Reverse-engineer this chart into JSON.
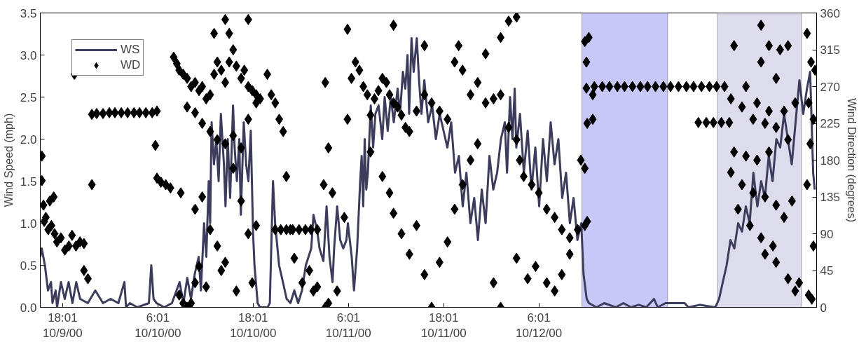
{
  "chart_data": {
    "type": "line",
    "ylabel": "Wind Speed (mph)",
    "y2label": "Wind Direction (degrees)",
    "xlim": [
      "2000-10-09T15:12",
      "2000-10-13T17:00"
    ],
    "xticks": [
      {
        "value": "2000-10-09T18:01",
        "label": "18:01\n10/9/00"
      },
      {
        "value": "2000-10-10T06:01",
        "label": "6:01\n10/10/00"
      },
      {
        "value": "2000-10-10T18:01",
        "label": "18:01\n10/10/00"
      },
      {
        "value": "2000-10-11T06:01",
        "label": "6:01\n10/11/00"
      },
      {
        "value": "2000-10-11T18:01",
        "label": "18:01\n10/11/00"
      },
      {
        "value": "2000-10-12T06:01",
        "label": "6:01\n10/12/00"
      }
    ],
    "ylim": [
      0,
      3.5
    ],
    "yticks": [
      {
        "value": 0,
        "label": "0.0"
      },
      {
        "value": 0.5,
        "label": "0.5"
      },
      {
        "value": 1,
        "label": "1.0"
      },
      {
        "value": 1.5,
        "label": "1.5"
      },
      {
        "value": 2,
        "label": "2.0"
      },
      {
        "value": 2.5,
        "label": "2.5"
      },
      {
        "value": 3,
        "label": "3.0"
      },
      {
        "value": 3.5,
        "label": "3.5"
      }
    ],
    "y2lim": [
      0,
      360
    ],
    "y2ticks": [
      0,
      45,
      90,
      135,
      180,
      225,
      270,
      315,
      360
    ],
    "grid": false,
    "legend": "top left",
    "line_style": "solid",
    "bands": [
      {
        "axis": "x",
        "from": "2000-10-12T11:26",
        "to": "2000-10-12T22:14",
        "label": null,
        "color": "#c8c8f8"
      },
      {
        "axis": "x",
        "from": "2000-10-13T04:30",
        "to": "2000-10-13T15:06",
        "label": null,
        "color": "#dcdcec"
      }
    ],
    "series": [
      {
        "name": "WS",
        "color": "#3c3c5c",
        "x": [
          "2000-10-09T15:12",
          "2000-10-09T15:23",
          "2000-10-09T15:47",
          "2000-10-09T16:10",
          "2000-10-09T16:33",
          "2000-10-09T16:44",
          "2000-10-09T17:08",
          "2000-10-09T17:19",
          "2000-10-09T17:48",
          "2000-10-09T18:17",
          "2000-10-09T18:46",
          "2000-10-09T19:15",
          "2000-10-09T19:44",
          "2000-10-09T20:13",
          "2000-10-09T21:11",
          "2000-10-09T22:08",
          "2000-10-09T23:06",
          "2000-10-10T00:04",
          "2000-10-10T01:02",
          "2000-10-10T01:48",
          "2000-10-10T02:00",
          "2000-10-10T02:29",
          "2000-10-10T03:26",
          "2000-10-10T04:53",
          "2000-10-10T05:11",
          "2000-10-10T05:28",
          "2000-10-10T05:51",
          "2000-10-10T06:49",
          "2000-10-10T07:47",
          "2000-10-10T08:45",
          "2000-10-10T09:14",
          "2000-10-10T09:43",
          "2000-10-10T10:11",
          "2000-10-10T10:40",
          "2000-10-10T11:09",
          "2000-10-10T11:26",
          "2000-10-10T11:50",
          "2000-10-10T12:07",
          "2000-10-10T12:25",
          "2000-10-10T12:36",
          "2000-10-10T12:47",
          "2000-10-10T13:05",
          "2000-10-10T13:22",
          "2000-10-10T13:40",
          "2000-10-10T13:57",
          "2000-10-10T14:20",
          "2000-10-10T14:32",
          "2000-10-10T14:49",
          "2000-10-10T15:07",
          "2000-10-10T15:29",
          "2000-10-10T15:41",
          "2000-10-10T15:58",
          "2000-10-10T16:16",
          "2000-10-10T16:28",
          "2000-10-10T16:50",
          "2000-10-10T17:08",
          "2000-10-10T17:25",
          "2000-10-10T17:43",
          "2000-10-10T18:00",
          "2000-10-10T18:11",
          "2000-10-10T18:35",
          "2000-10-10T18:52",
          "2000-10-10T19:50",
          "2000-10-10T20:07",
          "2000-10-10T20:31",
          "2000-10-10T20:47",
          "2000-10-10T21:17",
          "2000-10-10T21:46",
          "2000-10-10T22:14",
          "2000-10-10T22:43",
          "2000-10-10T23:12",
          "2000-10-10T23:41",
          "2000-10-11T00:10",
          "2000-10-11T00:39",
          "2000-10-11T01:20",
          "2000-10-11T01:37",
          "2000-10-11T02:06",
          "2000-10-11T02:23",
          "2000-10-11T02:52",
          "2000-10-11T03:16",
          "2000-10-11T03:38",
          "2000-10-11T04:01",
          "2000-10-11T04:13",
          "2000-10-11T04:36",
          "2000-10-11T04:59",
          "2000-10-11T05:22",
          "2000-10-11T05:46",
          "2000-10-11T05:57",
          "2000-10-11T06:26",
          "2000-10-11T06:43",
          "2000-10-11T07:07",
          "2000-10-11T07:30",
          "2000-10-11T07:41",
          "2000-10-11T07:53",
          "2000-10-11T08:04",
          "2000-10-11T08:16",
          "2000-10-11T08:28",
          "2000-10-11T08:50",
          "2000-10-11T09:08",
          "2000-10-11T09:25",
          "2000-10-11T09:49",
          "2000-10-11T10:17",
          "2000-10-11T10:35",
          "2000-10-11T10:58",
          "2000-10-11T11:21",
          "2000-10-11T11:44",
          "2000-10-11T12:13",
          "2000-10-11T12:31",
          "2000-10-11T12:53",
          "2000-10-11T13:11",
          "2000-10-11T13:28",
          "2000-10-11T13:40",
          "2000-10-11T13:58",
          "2000-10-11T14:14",
          "2000-10-11T14:38",
          "2000-10-11T14:55",
          "2000-10-11T15:13",
          "2000-10-11T15:35",
          "2000-10-11T16:04",
          "2000-10-11T16:34",
          "2000-10-11T17:02",
          "2000-10-11T17:31",
          "2000-10-11T18:00",
          "2000-10-11T18:29",
          "2000-10-11T18:58",
          "2000-10-11T19:27",
          "2000-10-11T19:56",
          "2000-10-11T20:25",
          "2000-10-11T20:53",
          "2000-10-11T21:23",
          "2000-10-11T21:52",
          "2000-10-11T22:20",
          "2000-10-11T22:49",
          "2000-10-11T23:18",
          "2000-10-11T23:47",
          "2000-10-12T00:16",
          "2000-10-12T00:45",
          "2000-10-12T01:14",
          "2000-10-12T01:43",
          "2000-10-12T02:00",
          "2000-10-12T02:23",
          "2000-10-12T02:41",
          "2000-10-12T02:58",
          "2000-10-12T03:10",
          "2000-10-12T03:38",
          "2000-10-12T04:07",
          "2000-10-12T04:36",
          "2000-10-12T05:05",
          "2000-10-12T05:34",
          "2000-10-12T06:03",
          "2000-10-12T06:32",
          "2000-10-12T07:01",
          "2000-10-12T07:30",
          "2000-10-12T07:59",
          "2000-10-12T08:28",
          "2000-10-12T08:57",
          "2000-10-12T09:26",
          "2000-10-12T09:55",
          "2000-10-12T10:23",
          "2000-10-12T10:52",
          "2000-10-12T11:21",
          "2000-10-12T11:38",
          "2000-10-12T12:02",
          "2000-10-12T12:19",
          "2000-10-12T13:17",
          "2000-10-12T14:15",
          "2000-10-12T15:41",
          "2000-10-12T16:40",
          "2000-10-12T17:37",
          "2000-10-12T18:35",
          "2000-10-12T19:33",
          "2000-10-12T20:31",
          "2000-10-12T20:59",
          "2000-10-12T21:58",
          "2000-10-12T22:55",
          "2000-10-13T00:22",
          "2000-10-13T00:51",
          "2000-10-13T02:18",
          "2000-10-13T04:14",
          "2000-10-13T04:43",
          "2000-10-13T05:11",
          "2000-10-13T05:40",
          "2000-10-13T06:09",
          "2000-10-13T06:38",
          "2000-10-13T07:07",
          "2000-10-13T07:36",
          "2000-10-13T08:05",
          "2000-10-13T08:34",
          "2000-10-13T09:02",
          "2000-10-13T09:32",
          "2000-10-13T10:01",
          "2000-10-13T10:29",
          "2000-10-13T10:58",
          "2000-10-13T11:27",
          "2000-10-13T11:56",
          "2000-10-13T12:25",
          "2000-10-13T12:54",
          "2000-10-13T13:23",
          "2000-10-13T13:52",
          "2000-10-13T14:21",
          "2000-10-13T14:50",
          "2000-10-13T15:19",
          "2000-10-13T15:47",
          "2000-10-13T16:11",
          "2000-10-13T16:34",
          "2000-10-13T16:46"
        ],
        "values": [
          0.6,
          0.7,
          0.5,
          0.2,
          0.3,
          0.05,
          0.2,
          0,
          0.3,
          0.1,
          0.3,
          0.05,
          0.3,
          0.1,
          0.05,
          0.2,
          0.05,
          0.1,
          0.05,
          0.3,
          0,
          0.05,
          0,
          0.05,
          0.5,
          0.1,
          0.05,
          0,
          0.05,
          0.3,
          0.05,
          0.35,
          0.1,
          0.4,
          0.6,
          0.2,
          1.0,
          0.6,
          1.5,
          1.0,
          2.2,
          1.7,
          2.0,
          1.5,
          2.3,
          1.7,
          1.2,
          2.0,
          1.3,
          2.4,
          1.9,
          1.5,
          2.0,
          1.1,
          2.2,
          1.7,
          1.5,
          2.1,
          0.9,
          0.5,
          0.05,
          0,
          0,
          0.05,
          1.5,
          1.0,
          0.5,
          0.3,
          0.1,
          0.05,
          0.2,
          0.05,
          0.2,
          0.5,
          0.7,
          1.1,
          0.9,
          0.7,
          0.55,
          1.2,
          0.6,
          0.3,
          0.7,
          1.2,
          0.8,
          0.7,
          0.8,
          1.0,
          0.6,
          0.2,
          0.7,
          1.5,
          1.8,
          1.2,
          2.0,
          1.4,
          1.6,
          2.4,
          1.9,
          2.3,
          2.4,
          2.0,
          2.5,
          2.1,
          2.5,
          2.2,
          2.6,
          2.3,
          2.8,
          2.6,
          3.0,
          2.3,
          3.2,
          2.8,
          3.2,
          2.7,
          2.3,
          2.7,
          2.2,
          2.4,
          2.0,
          2.3,
          2.1,
          1.9,
          2.2,
          1.6,
          1.8,
          1.2,
          1.6,
          1.0,
          1.3,
          0.8,
          1.4,
          1.0,
          1.8,
          1.4,
          1.6,
          2.0,
          2.2,
          1.6,
          2.5,
          2.0,
          2.6,
          1.9,
          2.3,
          1.6,
          2.1,
          1.4,
          1.9,
          1.2,
          2.0,
          1.5,
          2.2,
          1.7,
          2.0,
          1.3,
          1.6,
          1.0,
          1.3,
          0.8,
          1.0,
          0.4,
          0.1,
          0.05,
          0,
          0.05,
          0,
          0.05,
          0,
          0.03,
          0,
          0.1,
          0,
          0.05,
          0.05,
          0.05,
          0,
          0.03,
          0,
          0.1,
          0.3,
          0.5,
          0.8,
          0.7,
          1.0,
          0.9,
          1.2,
          1.0,
          1.6,
          1.2,
          1.5,
          1.3,
          1.8,
          1.5,
          2.0,
          1.9,
          2.3,
          2.0,
          1.7,
          2.2,
          2.7,
          2.3,
          2.6,
          2.8,
          1.6,
          1.4
        ]
      },
      {
        "name": "WD",
        "type": "scatter",
        "color": "#000000",
        "axis": "y2",
        "marker": "diamond",
        "x": [
          "2000-10-09T15:24",
          "2000-10-09T15:24",
          "2000-10-09T15:36",
          "2000-10-09T15:42",
          "2000-10-09T15:54",
          "2000-10-09T16:12",
          "2000-10-09T16:24",
          "2000-10-09T16:36",
          "2000-10-09T16:54",
          "2000-10-09T17:00",
          "2000-10-09T17:18",
          "2000-10-09T17:48",
          "2000-10-09T18:18",
          "2000-10-09T18:48",
          "2000-10-09T19:12",
          "2000-10-09T19:30",
          "2000-10-09T19:42",
          "2000-10-09T20:12",
          "2000-10-09T20:42",
          "2000-10-09T20:42",
          "2000-10-09T21:12",
          "2000-10-09T21:42",
          "2000-10-09T21:42",
          "2000-10-09T22:18",
          "2000-10-09T23:06",
          "2000-10-09T23:54",
          "2000-10-10T00:36",
          "2000-10-10T01:24",
          "2000-10-10T02:12",
          "2000-10-10T03:00",
          "2000-10-10T03:42",
          "2000-10-10T04:30",
          "2000-10-10T05:18",
          "2000-10-10T05:42",
          "2000-10-10T05:54",
          "2000-10-10T05:54",
          "2000-10-10T06:24",
          "2000-10-10T07:00",
          "2000-10-10T07:36",
          "2000-10-10T08:00",
          "2000-10-10T08:24",
          "2000-10-10T08:42",
          "2000-10-10T08:42",
          "2000-10-10T08:54",
          "2000-10-10T09:12",
          "2000-10-10T09:12",
          "2000-10-10T09:42",
          "2000-10-10T09:42",
          "2000-10-10T09:42",
          "2000-10-10T10:12",
          "2000-10-10T10:12",
          "2000-10-10T10:42",
          "2000-10-10T10:42",
          "2000-10-10T10:42",
          "2000-10-10T10:42",
          "2000-10-10T11:12",
          "2000-10-10T11:12",
          "2000-10-10T11:36",
          "2000-10-10T11:36",
          "2000-10-10T11:36",
          "2000-10-10T12:06",
          "2000-10-10T12:06",
          "2000-10-10T12:36",
          "2000-10-10T12:36",
          "2000-10-10T12:36",
          "2000-10-10T13:06",
          "2000-10-10T13:06",
          "2000-10-10T13:30",
          "2000-10-10T13:30",
          "2000-10-10T13:30",
          "2000-10-10T14:00",
          "2000-10-10T14:00",
          "2000-10-10T14:30",
          "2000-10-10T14:30",
          "2000-10-10T14:30",
          "2000-10-10T14:30",
          "2000-10-10T15:00",
          "2000-10-10T15:00",
          "2000-10-10T15:30",
          "2000-10-10T15:30",
          "2000-10-10T15:30",
          "2000-10-10T15:54",
          "2000-10-10T15:54",
          "2000-10-10T16:30",
          "2000-10-10T16:30",
          "2000-10-10T16:30",
          "2000-10-10T16:54",
          "2000-10-10T17:24",
          "2000-10-10T17:24",
          "2000-10-10T17:24",
          "2000-10-10T17:24",
          "2000-10-10T17:54",
          "2000-10-10T17:54",
          "2000-10-10T18:24",
          "2000-10-10T18:24",
          "2000-10-10T18:24",
          "2000-10-10T18:54",
          "2000-10-10T19:48",
          "2000-10-10T20:18",
          "2000-10-10T20:48",
          "2000-10-10T20:48",
          "2000-10-10T21:18",
          "2000-10-10T21:30",
          "2000-10-10T21:48",
          "2000-10-10T22:12",
          "2000-10-10T22:12",
          "2000-10-10T22:42",
          "2000-10-10T23:00",
          "2000-10-10T23:12",
          "2000-10-10T23:48",
          "2000-10-11T00:12",
          "2000-10-11T00:36",
          "2000-10-11T01:06",
          "2000-10-11T01:18",
          "2000-10-11T01:36",
          "2000-10-11T02:06",
          "2000-10-11T02:06",
          "2000-10-11T02:54",
          "2000-10-11T03:06",
          "2000-10-11T03:06",
          "2000-10-11T03:30",
          "2000-10-11T03:30",
          "2000-10-11T04:00",
          "2000-10-11T04:36",
          "2000-10-11T05:30",
          "2000-10-11T05:54",
          "2000-10-11T05:54",
          "2000-10-11T06:24",
          "2000-10-11T06:54",
          "2000-10-11T07:24",
          "2000-10-11T07:54",
          "2000-10-11T08:24",
          "2000-10-11T08:48",
          "2000-10-11T08:48",
          "2000-10-11T09:18",
          "2000-10-11T09:48",
          "2000-10-11T10:18",
          "2000-10-11T10:18",
          "2000-10-11T10:48",
          "2000-10-11T11:12",
          "2000-10-11T11:12",
          "2000-10-11T11:42",
          "2000-10-11T11:42",
          "2000-10-11T11:42",
          "2000-10-11T12:12",
          "2000-10-11T12:42",
          "2000-10-11T12:42",
          "2000-10-11T13:12",
          "2000-10-11T13:42",
          "2000-10-11T13:42",
          "2000-10-11T14:36",
          "2000-10-11T14:36",
          "2000-10-11T15:36",
          "2000-10-11T15:36",
          "2000-10-11T15:36",
          "2000-10-11T16:30",
          "2000-10-11T16:30",
          "2000-10-11T17:30",
          "2000-10-11T17:30",
          "2000-10-11T18:30",
          "2000-10-11T18:30",
          "2000-10-11T19:24",
          "2000-10-11T19:24",
          "2000-10-11T19:54",
          "2000-10-11T20:24",
          "2000-10-11T20:24",
          "2000-10-11T21:24",
          "2000-10-11T21:24",
          "2000-10-11T22:18",
          "2000-10-11T22:18",
          "2000-10-11T23:18",
          "2000-10-11T23:18",
          "2000-10-12T00:18",
          "2000-10-12T00:18",
          "2000-10-12T01:12",
          "2000-10-12T01:12",
          "2000-10-12T01:12",
          "2000-10-12T02:12",
          "2000-10-12T02:12",
          "2000-10-12T03:12",
          "2000-10-12T03:12",
          "2000-10-12T03:12",
          "2000-10-12T03:36",
          "2000-10-12T04:06",
          "2000-10-12T04:36",
          "2000-10-12T05:06",
          "2000-10-12T05:36",
          "2000-10-12T06:00",
          "2000-10-12T07:00",
          "2000-10-12T07:00",
          "2000-10-12T08:00",
          "2000-10-12T08:00",
          "2000-10-12T08:54",
          "2000-10-12T08:54",
          "2000-10-12T09:54",
          "2000-10-12T09:54",
          "2000-10-12T10:54",
          "2000-10-12T11:18",
          "2000-10-12T11:48",
          "2000-10-12T11:48",
          "2000-10-12T11:48",
          "2000-10-12T12:00",
          "2000-10-12T12:00",
          "2000-10-12T12:06",
          "2000-10-12T12:06",
          "2000-10-12T12:18",
          "2000-10-12T12:48",
          "2000-10-12T12:48",
          "2000-10-12T13:00",
          "2000-10-12T14:00",
          "2000-10-12T14:54",
          "2000-10-12T15:54",
          "2000-10-12T16:48",
          "2000-10-12T17:48",
          "2000-10-12T18:48",
          "2000-10-12T19:42",
          "2000-10-12T20:42",
          "2000-10-12T21:42",
          "2000-10-12T22:36",
          "2000-10-12T23:36",
          "2000-10-13T00:36",
          "2000-10-13T01:30",
          "2000-10-13T02:06",
          "2000-10-13T02:30",
          "2000-10-13T03:06",
          "2000-10-13T03:30",
          "2000-10-13T04:00",
          "2000-10-13T04:24",
          "2000-10-13T05:00",
          "2000-10-13T05:24",
          "2000-10-13T06:00",
          "2000-10-13T06:12",
          "2000-10-13T06:12",
          "2000-10-13T06:36",
          "2000-10-13T06:36",
          "2000-10-13T07:06",
          "2000-10-13T07:36",
          "2000-10-13T07:36",
          "2000-10-13T08:06",
          "2000-10-13T08:06",
          "2000-10-13T08:36",
          "2000-10-13T09:00",
          "2000-10-13T09:00",
          "2000-10-13T09:30",
          "2000-10-13T09:30",
          "2000-10-13T10:00",
          "2000-10-13T10:00",
          "2000-10-13T10:00",
          "2000-10-13T10:30",
          "2000-10-13T10:30",
          "2000-10-13T10:30",
          "2000-10-13T11:00",
          "2000-10-13T11:00",
          "2000-10-13T11:00",
          "2000-10-13T11:30",
          "2000-10-13T11:54",
          "2000-10-13T11:54",
          "2000-10-13T11:54",
          "2000-10-13T11:54",
          "2000-10-13T12:24",
          "2000-10-13T12:54",
          "2000-10-13T12:54",
          "2000-10-13T13:24",
          "2000-10-13T13:24",
          "2000-10-13T13:24",
          "2000-10-13T13:54",
          "2000-10-13T14:18",
          "2000-10-13T14:18",
          "2000-10-13T14:48",
          "2000-10-13T15:48",
          "2000-10-13T15:48",
          "2000-10-13T16:00",
          "2000-10-13T16:00",
          "2000-10-13T16:12",
          "2000-10-13T16:18",
          "2000-10-13T16:24",
          "2000-10-13T16:36",
          "2000-10-13T16:36",
          "2000-10-13T16:48"
        ],
        "values": [
          185,
          155,
          125,
          105,
          110,
          95,
          130,
          100,
          135,
          90,
          80,
          85,
          70,
          75,
          88,
          285,
          75,
          80,
          78,
          45,
          35,
          150,
          236,
          237,
          237,
          238,
          238,
          238,
          238,
          238,
          238,
          238,
          238,
          198,
          240,
          158,
          153,
          150,
          146,
          306,
          298,
          290,
          15,
          140,
          285,
          5,
          280,
          245,
          0,
          270,
          5,
          275,
          238,
          120,
          30,
          265,
          50,
          270,
          225,
          135,
          255,
          25,
          260,
          215,
          95,
          285,
          335,
          300,
          205,
          75,
          290,
          45,
          275,
          200,
          55,
          352,
          300,
          335,
          315,
          210,
          170,
          295,
          20,
          280,
          195,
          130,
          290,
          270,
          230,
          90,
          352,
          265,
          30,
          260,
          250,
          100,
          255,
          285,
          260,
          250,
          95,
          230,
          95,
          215,
          160,
          95,
          95,
          95,
          60,
          95,
          30,
          95,
          45,
          95,
          20,
          95,
          25,
          150,
          0,
          275,
          5,
          195,
          140,
          20,
          110,
          230,
          340,
          280,
          300,
          290,
          270,
          260,
          235,
          190,
          255,
          265,
          280,
          160,
          275,
          260,
          140,
          250,
          115,
          345,
          245,
          235,
          90,
          220,
          215,
          65,
          240,
          100,
          260,
          40,
          320,
          250,
          0,
          240,
          55,
          230,
          80,
          300,
          120,
          320,
          290,
          150,
          260,
          180,
          275,
          200,
          250,
          310,
          255,
          30,
          260,
          330,
          0,
          220,
          350,
          205,
          355,
          60,
          180,
          160,
          35,
          150,
          50,
          140,
          120,
          30,
          110,
          20,
          95,
          40,
          85,
          65,
          95,
          180,
          100,
          325,
          170,
          268,
          300,
          225,
          105,
          330,
          260,
          230,
          270,
          270,
          270,
          270,
          270,
          270,
          270,
          270,
          270,
          270,
          270,
          270,
          270,
          270,
          226,
          270,
          226,
          270,
          226,
          270,
          226,
          270,
          226,
          255,
          165,
          320,
          190,
          120,
          245,
          150,
          270,
          185,
          100,
          230,
          140,
          250,
          180,
          345,
          300,
          85,
          225,
          135,
          65,
          320,
          240,
          190,
          75,
          280,
          220,
          125,
          55,
          315,
          240,
          110,
          320,
          205,
          35,
          130,
          250,
          20,
          30,
          335,
          150,
          250,
          15,
          200,
          300,
          10,
          230,
          75,
          290
        ]
      }
    ]
  }
}
